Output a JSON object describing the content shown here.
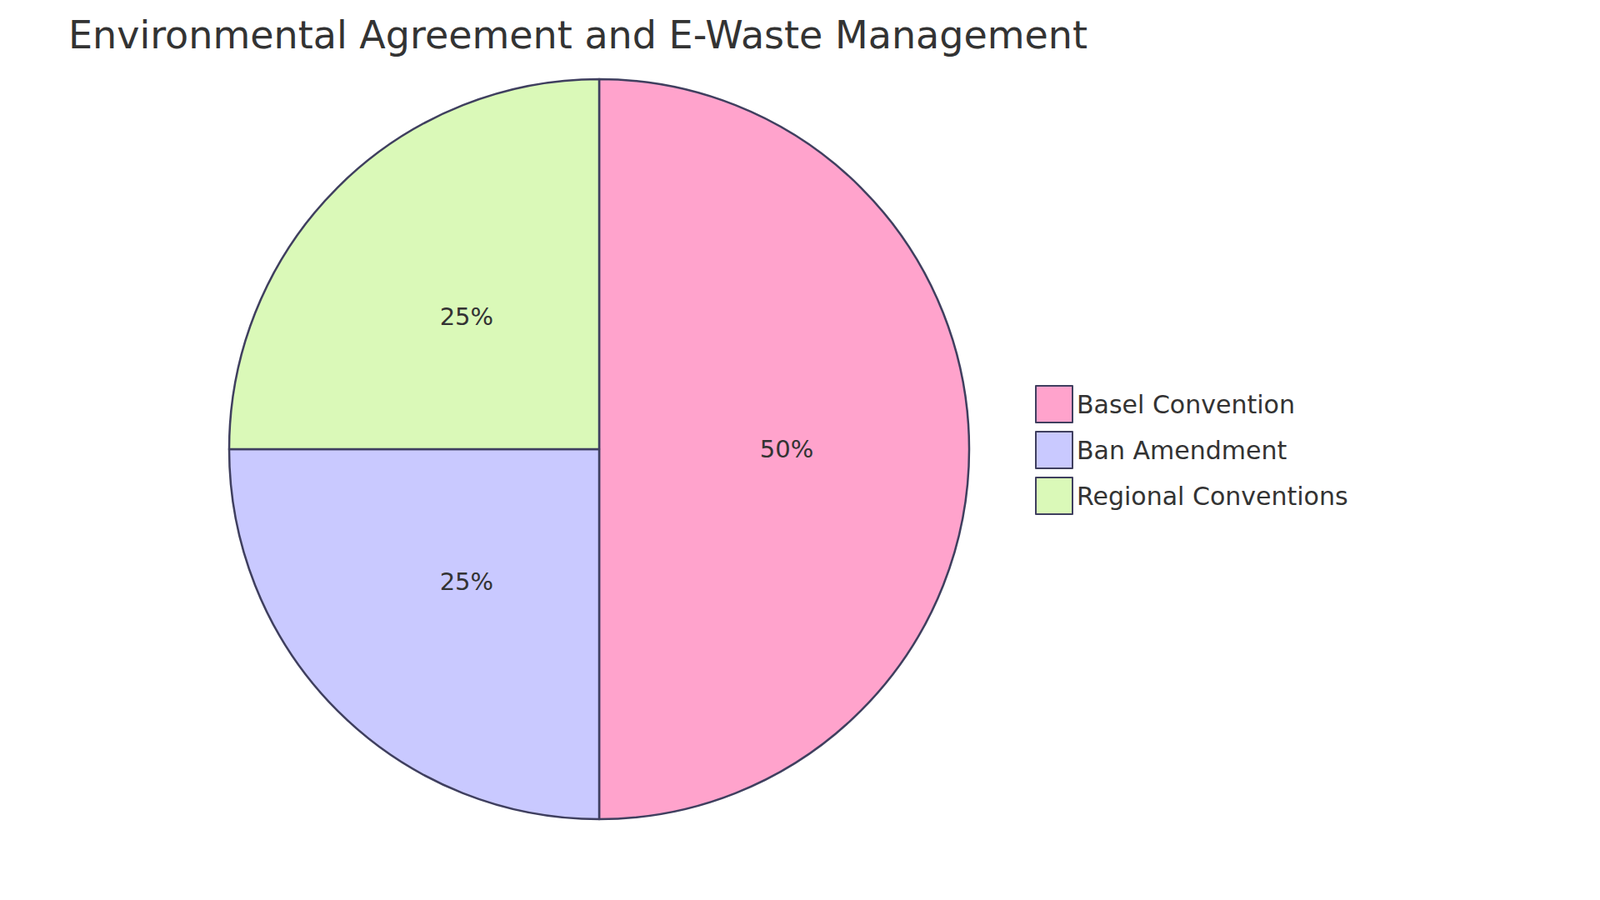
{
  "chart_data": {
    "type": "pie",
    "title": "Environmental Agreement and E-Waste Management",
    "categories": [
      "Basel Convention",
      "Ban Amendment",
      "Regional Conventions"
    ],
    "values": [
      50,
      25,
      25
    ],
    "value_labels": [
      "50%",
      "25%",
      "25%"
    ],
    "colors": [
      "#ffa3cc",
      "#c9c9ff",
      "#daf9b8"
    ],
    "data_labels": true,
    "legend": "right"
  }
}
